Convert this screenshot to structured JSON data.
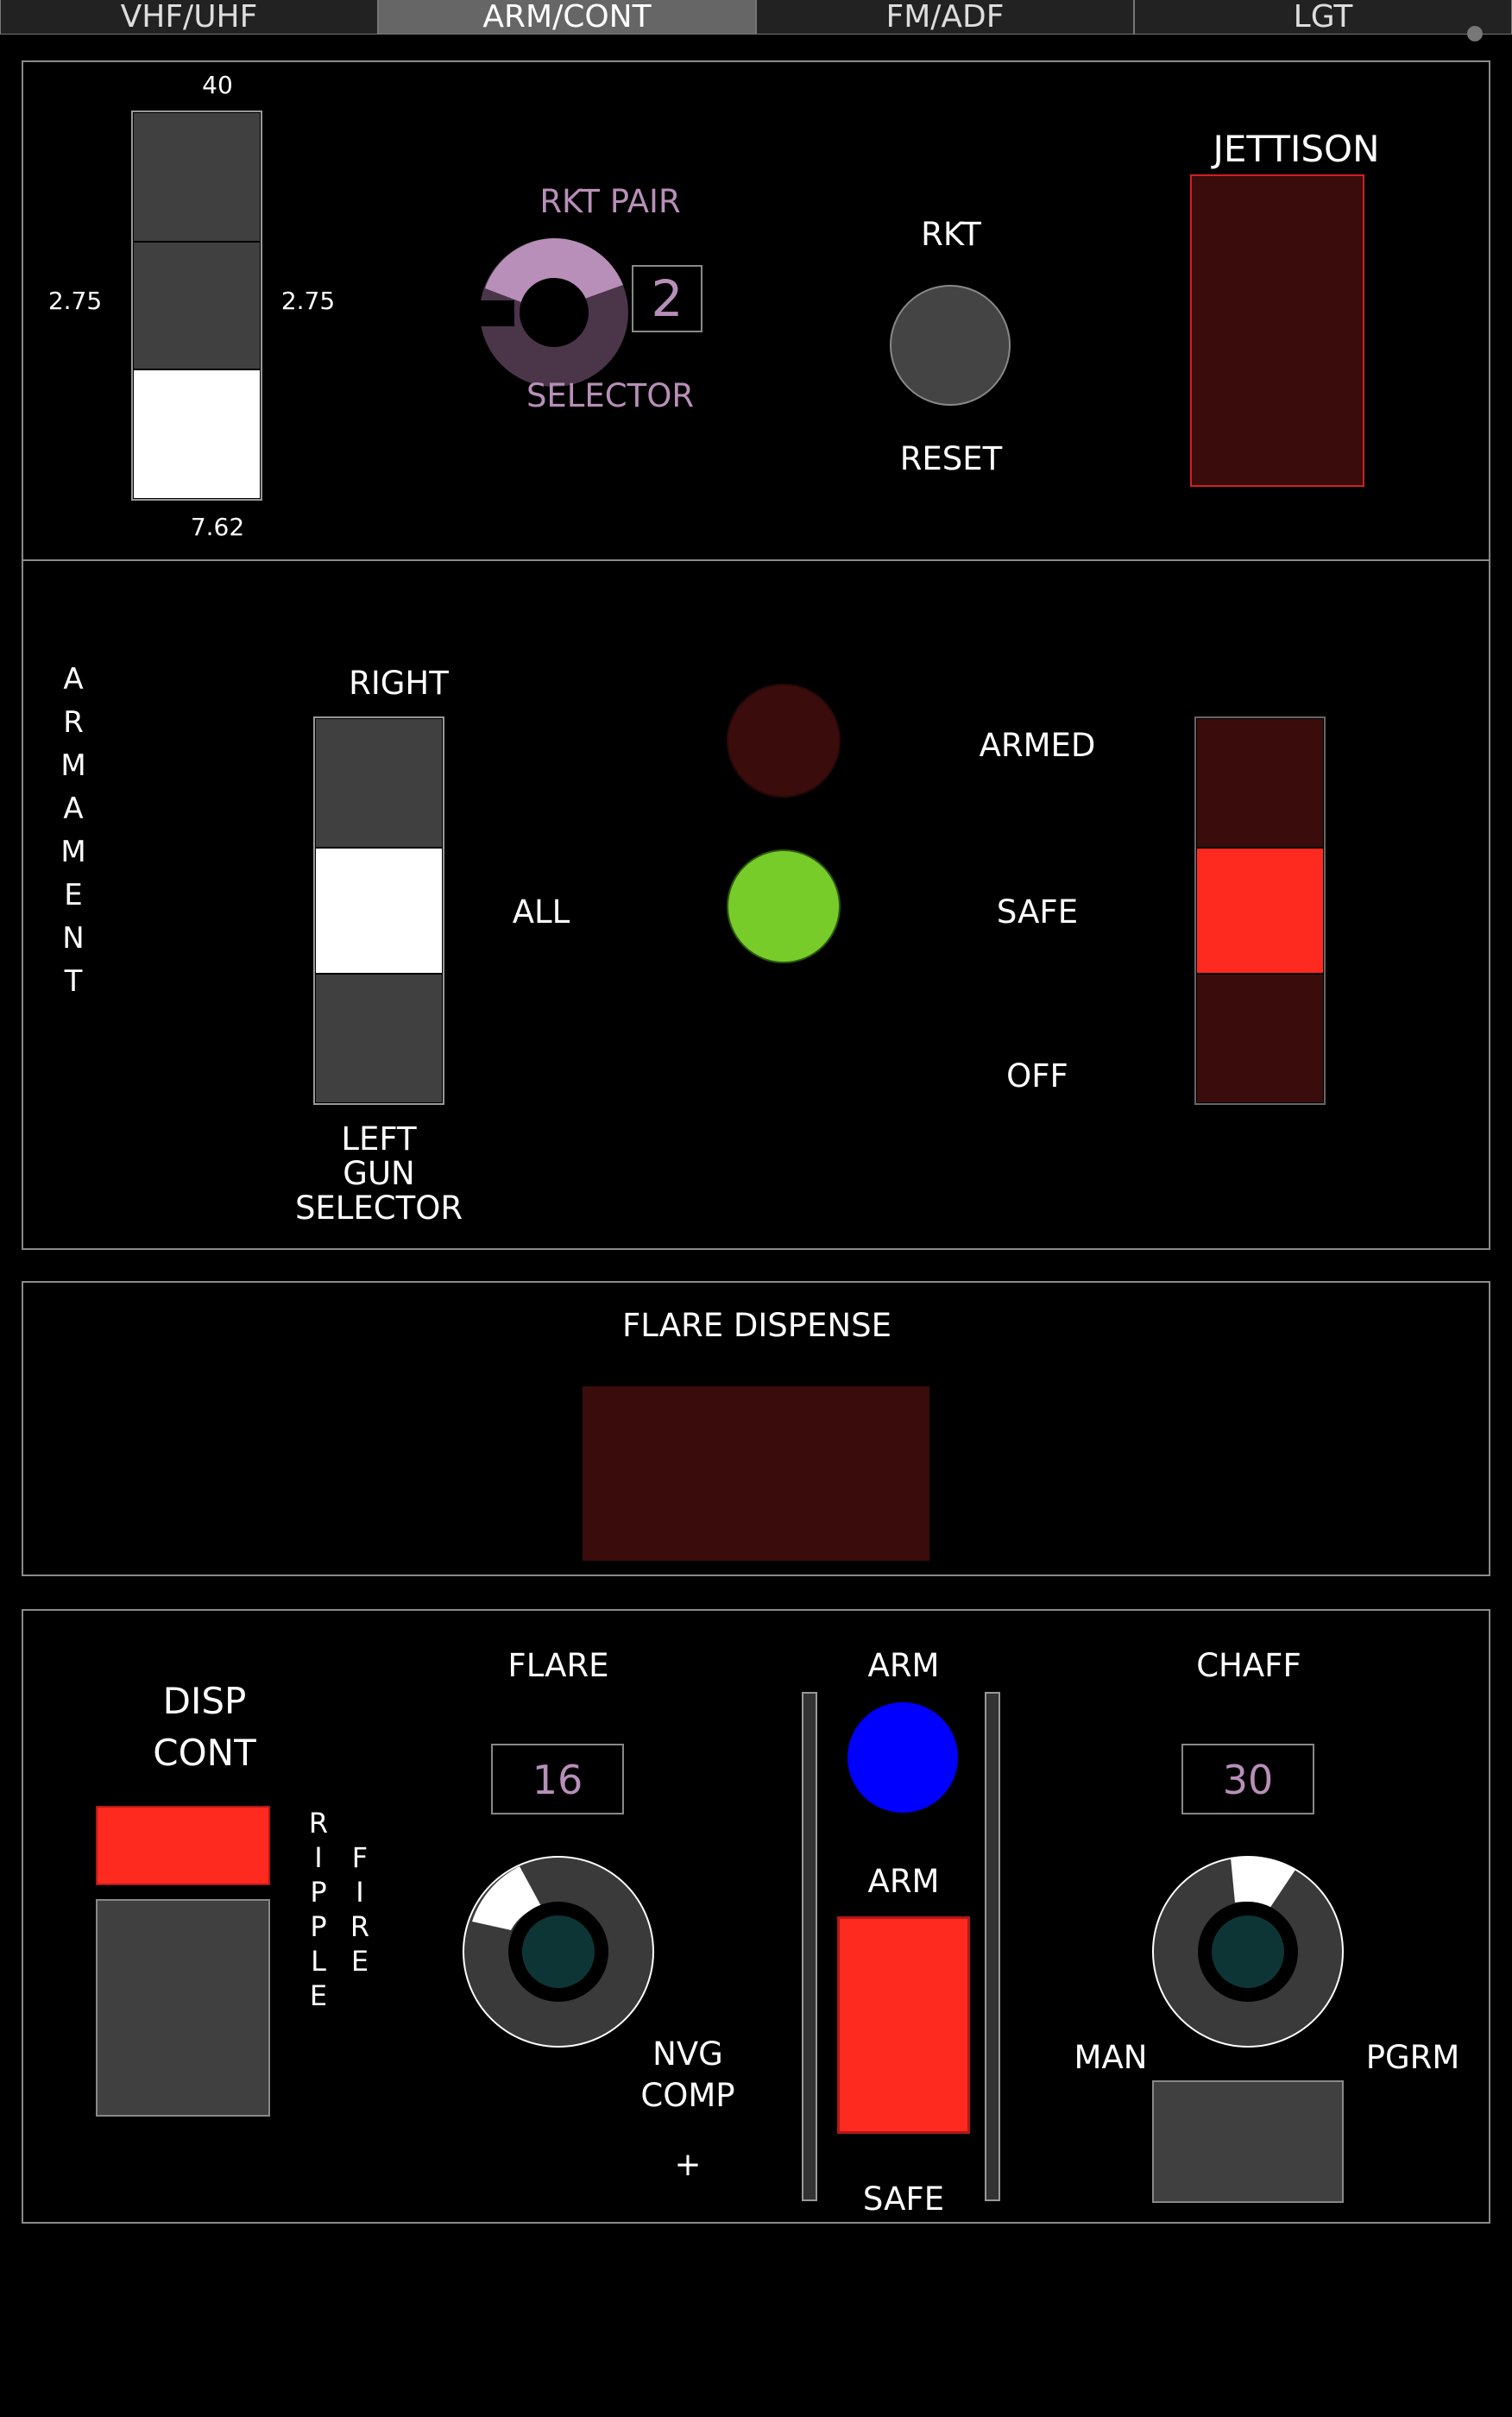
{
  "tabs": [
    "VHF/UHF",
    "ARM/CONT",
    "FM/ADF",
    "LGT"
  ],
  "rocket_panel": {
    "rocket_size_top": "40",
    "rocket_size_left": "2.75",
    "rocket_size_right": "2.75",
    "rocket_size_bottom": "7.62",
    "rocket_size_selected": "7.62",
    "pair_label_top": "RKT PAIR",
    "pair_label_bottom": "SELECTOR",
    "pair_value": "2",
    "rkt_reset_top": "RKT",
    "rkt_reset_bottom": "RESET",
    "jettison_label": "JETTISON"
  },
  "armament_panel": {
    "side_label": [
      "A",
      "R",
      "M",
      "A",
      "M",
      "E",
      "N",
      "T"
    ],
    "gun_right": "RIGHT",
    "gun_all": "ALL",
    "gun_left": "LEFT",
    "gun_label_1": "GUN",
    "gun_label_2": "SELECTOR",
    "gun_selected": "ALL",
    "armed_label": "ARMED",
    "safe_label": "SAFE",
    "off_label": "OFF",
    "master_selected": "SAFE",
    "lamp_armed_color": "#3a0c0c",
    "lamp_safe_color": "#78cc2a"
  },
  "flare_dispense_panel": {
    "title": "FLARE DISPENSE"
  },
  "cm_panel": {
    "disp_cont_1": "DISP",
    "disp_cont_2": "CONT",
    "ripple": [
      "R",
      "I",
      "P",
      "P",
      "L",
      "E"
    ],
    "fire": [
      "F",
      "I",
      "R",
      "E"
    ],
    "flare_label": "FLARE",
    "flare_count": "16",
    "nvg_1": "NVG",
    "nvg_2": "COMP",
    "plus": "+",
    "arm_top": "ARM",
    "arm_mid": "ARM",
    "safe_bottom": "SAFE",
    "arm_lamp_color": "#0000ff",
    "chaff_label": "CHAFF",
    "chaff_count": "30",
    "man_label": "MAN",
    "pgrm_label": "PGRM"
  }
}
